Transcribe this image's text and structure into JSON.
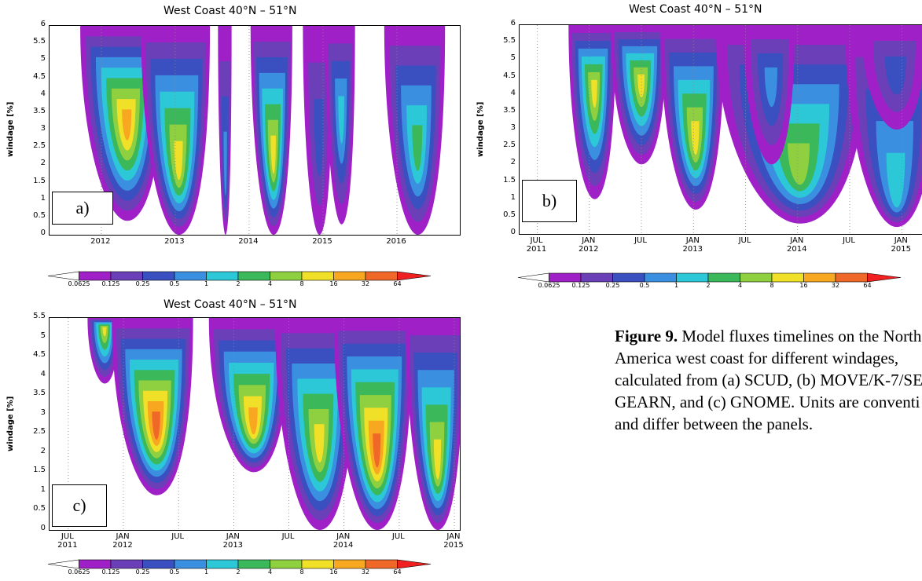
{
  "chart_data": [
    {
      "panel": "a",
      "type": "heatmap",
      "title": "West Coast 40°N – 51°N",
      "ylabel": "windage [%]",
      "xlabel": "",
      "yticks": [
        "0",
        "0.5",
        "1",
        "1.5",
        "2",
        "2.5",
        "3",
        "3.5",
        "4",
        "4.5",
        "5",
        "5.5",
        "6"
      ],
      "ylim": [
        0,
        6
      ],
      "xtick_labels": [
        [
          "2012"
        ],
        [
          "2013"
        ],
        [
          "2014"
        ],
        [
          "2015"
        ],
        [
          "2016"
        ]
      ],
      "xlim": [
        2011.3,
        2016.85
      ],
      "xtick_values": [
        2012,
        2013,
        2014,
        2015,
        2016
      ],
      "panel_label": "a)",
      "colorbar_levels": [
        "0.0625",
        "0.125",
        "0.25",
        "0.5",
        "1",
        "2",
        "4",
        "8",
        "16",
        "32",
        "64"
      ],
      "plumes": [
        {
          "x0": 2011.78,
          "x1": 2012.72,
          "bottom": 0.4,
          "peak_x": 2012.35,
          "peak_y": 3.0,
          "peak_level": 9
        },
        {
          "x0": 2012.74,
          "x1": 2013.5,
          "bottom": 0.0,
          "peak_x": 2013.05,
          "peak_y": 1.8,
          "peak_level": 8
        },
        {
          "x0": 2013.6,
          "x1": 2013.75,
          "bottom": 0.0,
          "peak_x": 2013.68,
          "peak_y": 1.5,
          "peak_level": 4
        },
        {
          "x0": 2014.06,
          "x1": 2014.52,
          "bottom": 0.0,
          "peak_x": 2014.33,
          "peak_y": 2.0,
          "peak_level": 8
        },
        {
          "x0": 2014.72,
          "x1": 2015.05,
          "bottom": 0.0,
          "peak_x": 2014.95,
          "peak_y": 2.5,
          "peak_level": 3
        },
        {
          "x0": 2015.05,
          "x1": 2015.38,
          "bottom": 0.3,
          "peak_x": 2015.25,
          "peak_y": 3.2,
          "peak_level": 5
        },
        {
          "x0": 2015.88,
          "x1": 2016.55,
          "bottom": 0.0,
          "peak_x": 2016.28,
          "peak_y": 2.2,
          "peak_level": 6
        }
      ]
    },
    {
      "panel": "b",
      "type": "heatmap",
      "title": "West Coast 40°N – 51°N",
      "ylabel": "windage [%]",
      "xlabel": "",
      "yticks": [
        "0",
        "0.5",
        "1",
        "1.5",
        "2",
        "2.5",
        "3",
        "3.5",
        "4",
        "4.5",
        "5",
        "5.5",
        "6"
      ],
      "ylim": [
        0,
        6
      ],
      "xtick_labels": [
        [
          "JUL",
          "2011"
        ],
        [
          "JAN",
          "2012"
        ],
        [
          "JUL"
        ],
        [
          "JAN",
          "2013"
        ],
        [
          "JUL"
        ],
        [
          "JAN",
          "2014"
        ],
        [
          "JUL"
        ],
        [
          "JAN",
          "2015"
        ]
      ],
      "xlim": [
        2011.33,
        2015.33
      ],
      "xtick_values": [
        2011.5,
        2012.0,
        2012.5,
        2013.0,
        2013.5,
        2014.0,
        2014.5,
        2015.0
      ],
      "panel_label": "b)",
      "colorbar_levels": [
        "0.0625",
        "0.125",
        "0.25",
        "0.5",
        "1",
        "2",
        "4",
        "8",
        "16",
        "32",
        "64"
      ],
      "plumes": [
        {
          "x0": 2011.85,
          "x1": 2012.22,
          "bottom": 1.0,
          "peak_x": 2012.05,
          "peak_y": 4.0,
          "peak_level": 8
        },
        {
          "x0": 2012.28,
          "x1": 2012.72,
          "bottom": 2.0,
          "peak_x": 2012.5,
          "peak_y": 4.2,
          "peak_level": 8
        },
        {
          "x0": 2012.75,
          "x1": 2013.25,
          "bottom": 0.7,
          "peak_x": 2013.02,
          "peak_y": 2.5,
          "peak_level": 8
        },
        {
          "x0": 2013.35,
          "x1": 2014.55,
          "bottom": 0.3,
          "peak_x": 2014.02,
          "peak_y": 1.6,
          "peak_level": 7
        },
        {
          "x0": 2013.55,
          "x1": 2013.95,
          "bottom": 2.0,
          "peak_x": 2013.75,
          "peak_y": 4.2,
          "peak_level": 4
        },
        {
          "x0": 2014.6,
          "x1": 2015.33,
          "bottom": 0.2,
          "peak_x": 2014.95,
          "peak_y": 0.9,
          "peak_level": 5
        },
        {
          "x0": 2014.7,
          "x1": 2015.2,
          "bottom": 3.0,
          "peak_x": 2014.95,
          "peak_y": 4.5,
          "peak_level": 3
        },
        {
          "x0": 2015.22,
          "x1": 2015.33,
          "bottom": 0.0,
          "peak_x": 2015.3,
          "peak_y": 1.3,
          "peak_level": 10
        }
      ]
    },
    {
      "panel": "c",
      "type": "heatmap",
      "title": "West Coast 40°N – 51°N",
      "ylabel": "windage [%]",
      "xlabel": "",
      "yticks": [
        "0",
        "0.5",
        "1",
        "1.5",
        "2",
        "2.5",
        "3",
        "3.5",
        "4",
        "4.5",
        "5",
        "5.5"
      ],
      "ylim": [
        0,
        5.5
      ],
      "xtick_labels": [
        [
          "JUL",
          "2011"
        ],
        [
          "JAN",
          "2012"
        ],
        [
          "JUL"
        ],
        [
          "JAN",
          "2013"
        ],
        [
          "JUL"
        ],
        [
          "JAN",
          "2014"
        ],
        [
          "JUL"
        ],
        [
          "JAN",
          "2015"
        ]
      ],
      "xlim": [
        2011.33,
        2015.05
      ],
      "xtick_values": [
        2011.5,
        2012.0,
        2012.5,
        2013.0,
        2013.5,
        2014.0,
        2014.5,
        2015.0
      ],
      "panel_label": "c)",
      "colorbar_levels": [
        "0.0625",
        "0.125",
        "0.25",
        "0.5",
        "1",
        "2",
        "4",
        "8",
        "16",
        "32",
        "64"
      ],
      "plumes": [
        {
          "x0": 2011.72,
          "x1": 2011.95,
          "bottom": 3.8,
          "peak_x": 2011.83,
          "peak_y": 5.2,
          "peak_level": 8
        },
        {
          "x0": 2012.0,
          "x1": 2012.6,
          "bottom": 0.9,
          "peak_x": 2012.3,
          "peak_y": 2.5,
          "peak_level": 10
        },
        {
          "x0": 2012.9,
          "x1": 2013.5,
          "bottom": 1.5,
          "peak_x": 2013.18,
          "peak_y": 2.6,
          "peak_level": 9
        },
        {
          "x0": 2013.5,
          "x1": 2014.1,
          "bottom": 0.0,
          "peak_x": 2013.78,
          "peak_y": 2.0,
          "peak_level": 8
        },
        {
          "x0": 2014.02,
          "x1": 2014.6,
          "bottom": 0.0,
          "peak_x": 2014.3,
          "peak_y": 1.8,
          "peak_level": 10
        },
        {
          "x0": 2014.62,
          "x1": 2015.05,
          "bottom": 0.0,
          "peak_x": 2014.85,
          "peak_y": 1.5,
          "peak_level": 8
        }
      ]
    }
  ],
  "colorbar": {
    "labels": [
      "0.0625",
      "0.125",
      "0.25",
      "0.5",
      "1",
      "2",
      "4",
      "8",
      "16",
      "32",
      "64"
    ],
    "colors": [
      "#ffffff",
      "#a020c8",
      "#6a3fb8",
      "#3a4fc0",
      "#3a8fe0",
      "#2cc8d8",
      "#3ab85a",
      "#8fd040",
      "#f0e028",
      "#f8a820",
      "#f06828",
      "#f02020"
    ]
  },
  "caption": {
    "label": "Figure 9.",
    "lines": [
      " Model fluxes timelines on the North",
      "America west coast for different windages,",
      "calculated from (a) SCUD, (b) MOVE/K-7/SE",
      "GEARN, and (c) GNOME. Units are conventi",
      "and differ between the panels."
    ]
  }
}
